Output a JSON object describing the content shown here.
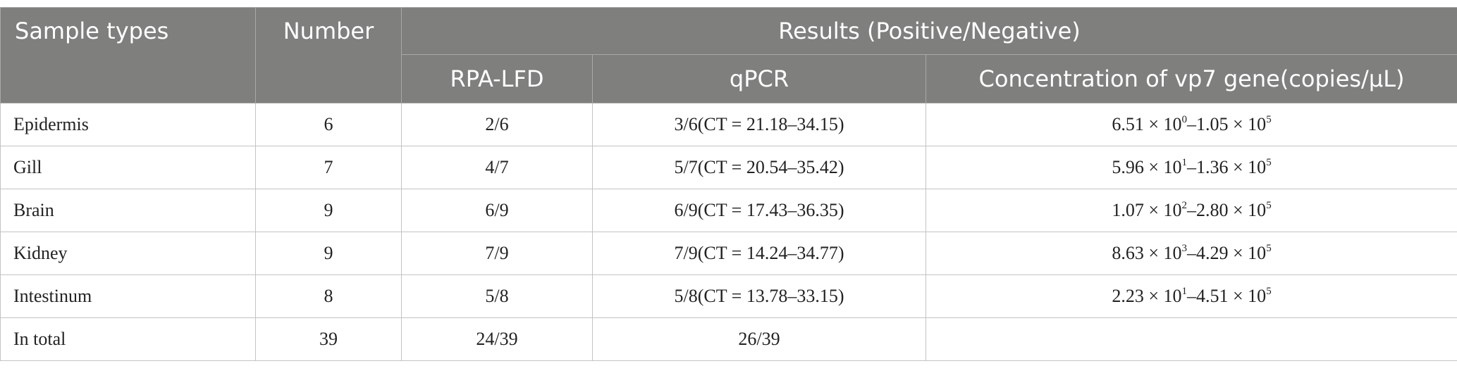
{
  "table": {
    "header": {
      "sample_types": "Sample types",
      "number": "Number",
      "results": "Results (Positive/Negative)",
      "subcolumns": [
        "RPA-LFD",
        "qPCR",
        "Concentration of vp7 gene(copies/μL)"
      ]
    },
    "rows": [
      [
        "Epidermis",
        "6",
        "2/6",
        "3/6(CT = 21.18–34.15)",
        [
          "6.51 × 10",
          "0",
          "–1.05 × 10",
          "5"
        ]
      ],
      [
        "Gill",
        "7",
        "4/7",
        "5/7(CT = 20.54–35.42)",
        [
          "5.96 × 10",
          "1",
          "–1.36 × 10",
          "5"
        ]
      ],
      [
        "Brain",
        "9",
        "6/9",
        "6/9(CT = 17.43–36.35)",
        [
          "1.07 × 10",
          "2",
          "–2.80 × 10",
          "5"
        ]
      ],
      [
        "Kidney",
        "9",
        "7/9",
        "7/9(CT = 14.24–34.77)",
        [
          "8.63 × 10",
          "3",
          "–4.29 × 10",
          "5"
        ]
      ],
      [
        "Intestinum",
        "8",
        "5/8",
        "5/8(CT = 13.78–33.15)",
        [
          "2.23 × 10",
          "1",
          "–4.51 × 10",
          "5"
        ]
      ],
      [
        "In total",
        "39",
        "24/39",
        "26/39"
      ]
    ]
  }
}
